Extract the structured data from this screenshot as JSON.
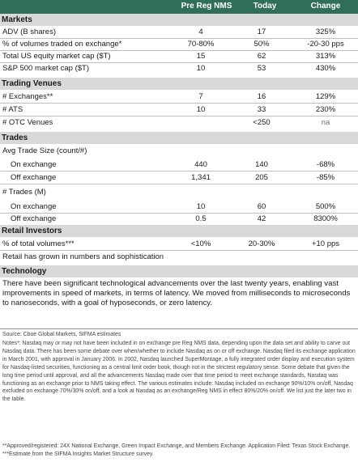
{
  "header": {
    "col1": "Pre Reg NMS",
    "col2": "Today",
    "col3": "Change"
  },
  "markets": {
    "title": "Markets",
    "rows": [
      {
        "label": "ADV (B shares)",
        "v1": "4",
        "v2": "17",
        "v3": "325%"
      },
      {
        "label": "% of volumes traded on exchange*",
        "v1": "70-80%",
        "v2": "50%",
        "v3": "-20-30 pps"
      },
      {
        "label": "Total US equity market cap ($T)",
        "v1": "15",
        "v2": "62",
        "v3": "313%"
      },
      {
        "label": "S&P 500 market cap ($T)",
        "v1": "10",
        "v2": "53",
        "v3": "430%"
      }
    ]
  },
  "venues": {
    "title": "Trading Venues",
    "rows": [
      {
        "label": "# Exchanges**",
        "v1": "7",
        "v2": "16",
        "v3": "129%"
      },
      {
        "label": "# ATS",
        "v1": "10",
        "v2": "33",
        "v3": "230%"
      },
      {
        "label": "# OTC Venues",
        "v1": "",
        "v2": "<250",
        "v3": "na"
      }
    ]
  },
  "trades": {
    "title": "Trades",
    "avg_label": "Avg Trade Size (count/#)",
    "avg_rows": [
      {
        "label": "On exchange",
        "v1": "440",
        "v2": "140",
        "v3": "-68%"
      },
      {
        "label": "Off exchange",
        "v1": "1,341",
        "v2": "205",
        "v3": "-85%"
      }
    ],
    "count_label": "# Trades (M)",
    "count_rows": [
      {
        "label": "On exchange",
        "v1": "10",
        "v2": "60",
        "v3": "500%"
      },
      {
        "label": "Off exchange",
        "v1": "0.5",
        "v2": "42",
        "v3": "8300%"
      }
    ]
  },
  "retail": {
    "title": "Retail Investors",
    "row": {
      "label": "% of total volumes***",
      "v1": "<10%",
      "v2": "20-30%",
      "v3": "+10 pps"
    },
    "note": "Retail has grown in numbers and sophistication"
  },
  "technology": {
    "title": "Technology",
    "text": "There have been significant technological advancements over the last twenty years, enabling vast improvements in speed of markets, in terms of latency. We moved from milliseconds to microseconds to nanoseconds, with a goal of hyposeconds, or zero latency."
  },
  "footer": {
    "source": "Source: Cboe Global Markets, SIFMA estimates",
    "notes": "Notes*: Nasdaq may or may not have been included in on exchange pre Reg NMS data, depending upon the data set and ability to carve out Nasdaq data. There has been some debate over when/whether to include Nasdaq as on or off exchange. Nasdaq filed its exchange application in March 2001, with approval in January 2006. In 2002, Nasdaq launched SuperMontage, a fully integrated order display and execution system for Nasdaq-listed securities, functioning as a central limit order book, though not in the strictest regulatory sense. Some debate that given the long time period until approval, and all the advancements Nasdaq made over that time period to meet exchange standards, Nasdaq was functioning as an exchange prior to NMS taking effect. The various estimates include: Nasdaq included on exchange 90%/10% on/off, Nasdaq excluded on exchange 70%/30% on/off, and a look at Nasdaq as an exchange/Reg NMS in effect 80%/20% on/off. We list just the later two in the table.",
    "footnote2": "**Approved/registered: 24X National Exchange, Green Impact Exchange, and Members Exchange. Application Filed: Texas Stock Exchange. ***Estimate from the SIFMA Insights Market Structure survey."
  }
}
